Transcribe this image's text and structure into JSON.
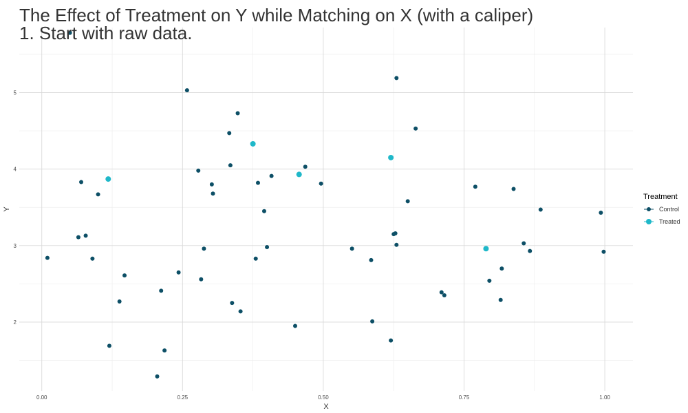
{
  "chart_data": {
    "type": "scatter",
    "title_lines": [
      "The Effect of Treatment on Y while Matching on X (with a caliper)",
      "1. Start with raw data."
    ],
    "xlabel": "X",
    "ylabel": "Y",
    "xlim": [
      -0.04,
      1.05
    ],
    "ylim": [
      1.1,
      5.85
    ],
    "x_ticks": [
      0.0,
      0.25,
      0.5,
      0.75,
      1.0
    ],
    "x_tick_labels": [
      "0.00",
      "0.25",
      "0.50",
      "0.75",
      "1.00"
    ],
    "y_ticks": [
      2,
      3,
      4,
      5
    ],
    "y_tick_labels": [
      "2",
      "3",
      "4",
      "5"
    ],
    "grid": true,
    "legend_title": "Treatment",
    "legend_position": "right",
    "series": [
      {
        "name": "Control",
        "color": "#0d4f66",
        "points": [
          [
            0.01,
            2.84
          ],
          [
            0.05,
            5.78
          ],
          [
            0.065,
            3.11
          ],
          [
            0.07,
            3.83
          ],
          [
            0.078,
            3.13
          ],
          [
            0.09,
            2.83
          ],
          [
            0.1,
            3.67
          ],
          [
            0.12,
            1.69
          ],
          [
            0.138,
            2.27
          ],
          [
            0.147,
            2.61
          ],
          [
            0.205,
            1.29
          ],
          [
            0.212,
            2.41
          ],
          [
            0.218,
            1.63
          ],
          [
            0.243,
            2.65
          ],
          [
            0.258,
            5.03
          ],
          [
            0.278,
            3.98
          ],
          [
            0.283,
            2.56
          ],
          [
            0.288,
            2.96
          ],
          [
            0.302,
            3.8
          ],
          [
            0.304,
            3.68
          ],
          [
            0.333,
            4.47
          ],
          [
            0.335,
            4.05
          ],
          [
            0.338,
            2.25
          ],
          [
            0.348,
            4.73
          ],
          [
            0.353,
            2.14
          ],
          [
            0.38,
            2.83
          ],
          [
            0.384,
            3.82
          ],
          [
            0.395,
            3.45
          ],
          [
            0.4,
            2.98
          ],
          [
            0.408,
            3.91
          ],
          [
            0.45,
            1.95
          ],
          [
            0.468,
            4.03
          ],
          [
            0.496,
            3.81
          ],
          [
            0.551,
            2.96
          ],
          [
            0.585,
            2.81
          ],
          [
            0.587,
            2.01
          ],
          [
            0.62,
            1.76
          ],
          [
            0.625,
            3.15
          ],
          [
            0.628,
            3.16
          ],
          [
            0.63,
            5.19
          ],
          [
            0.63,
            3.01
          ],
          [
            0.65,
            3.58
          ],
          [
            0.664,
            4.53
          ],
          [
            0.71,
            2.39
          ],
          [
            0.715,
            2.35
          ],
          [
            0.77,
            3.77
          ],
          [
            0.795,
            2.54
          ],
          [
            0.815,
            2.29
          ],
          [
            0.817,
            2.7
          ],
          [
            0.838,
            3.74
          ],
          [
            0.856,
            3.03
          ],
          [
            0.867,
            2.93
          ],
          [
            0.886,
            3.47
          ],
          [
            0.993,
            3.43
          ],
          [
            0.998,
            2.92
          ]
        ]
      },
      {
        "name": "Treated",
        "color": "#1fb8c9",
        "points": [
          [
            0.118,
            3.87
          ],
          [
            0.375,
            4.33
          ],
          [
            0.457,
            3.93
          ],
          [
            0.62,
            4.15
          ],
          [
            0.789,
            2.96
          ]
        ]
      }
    ]
  }
}
